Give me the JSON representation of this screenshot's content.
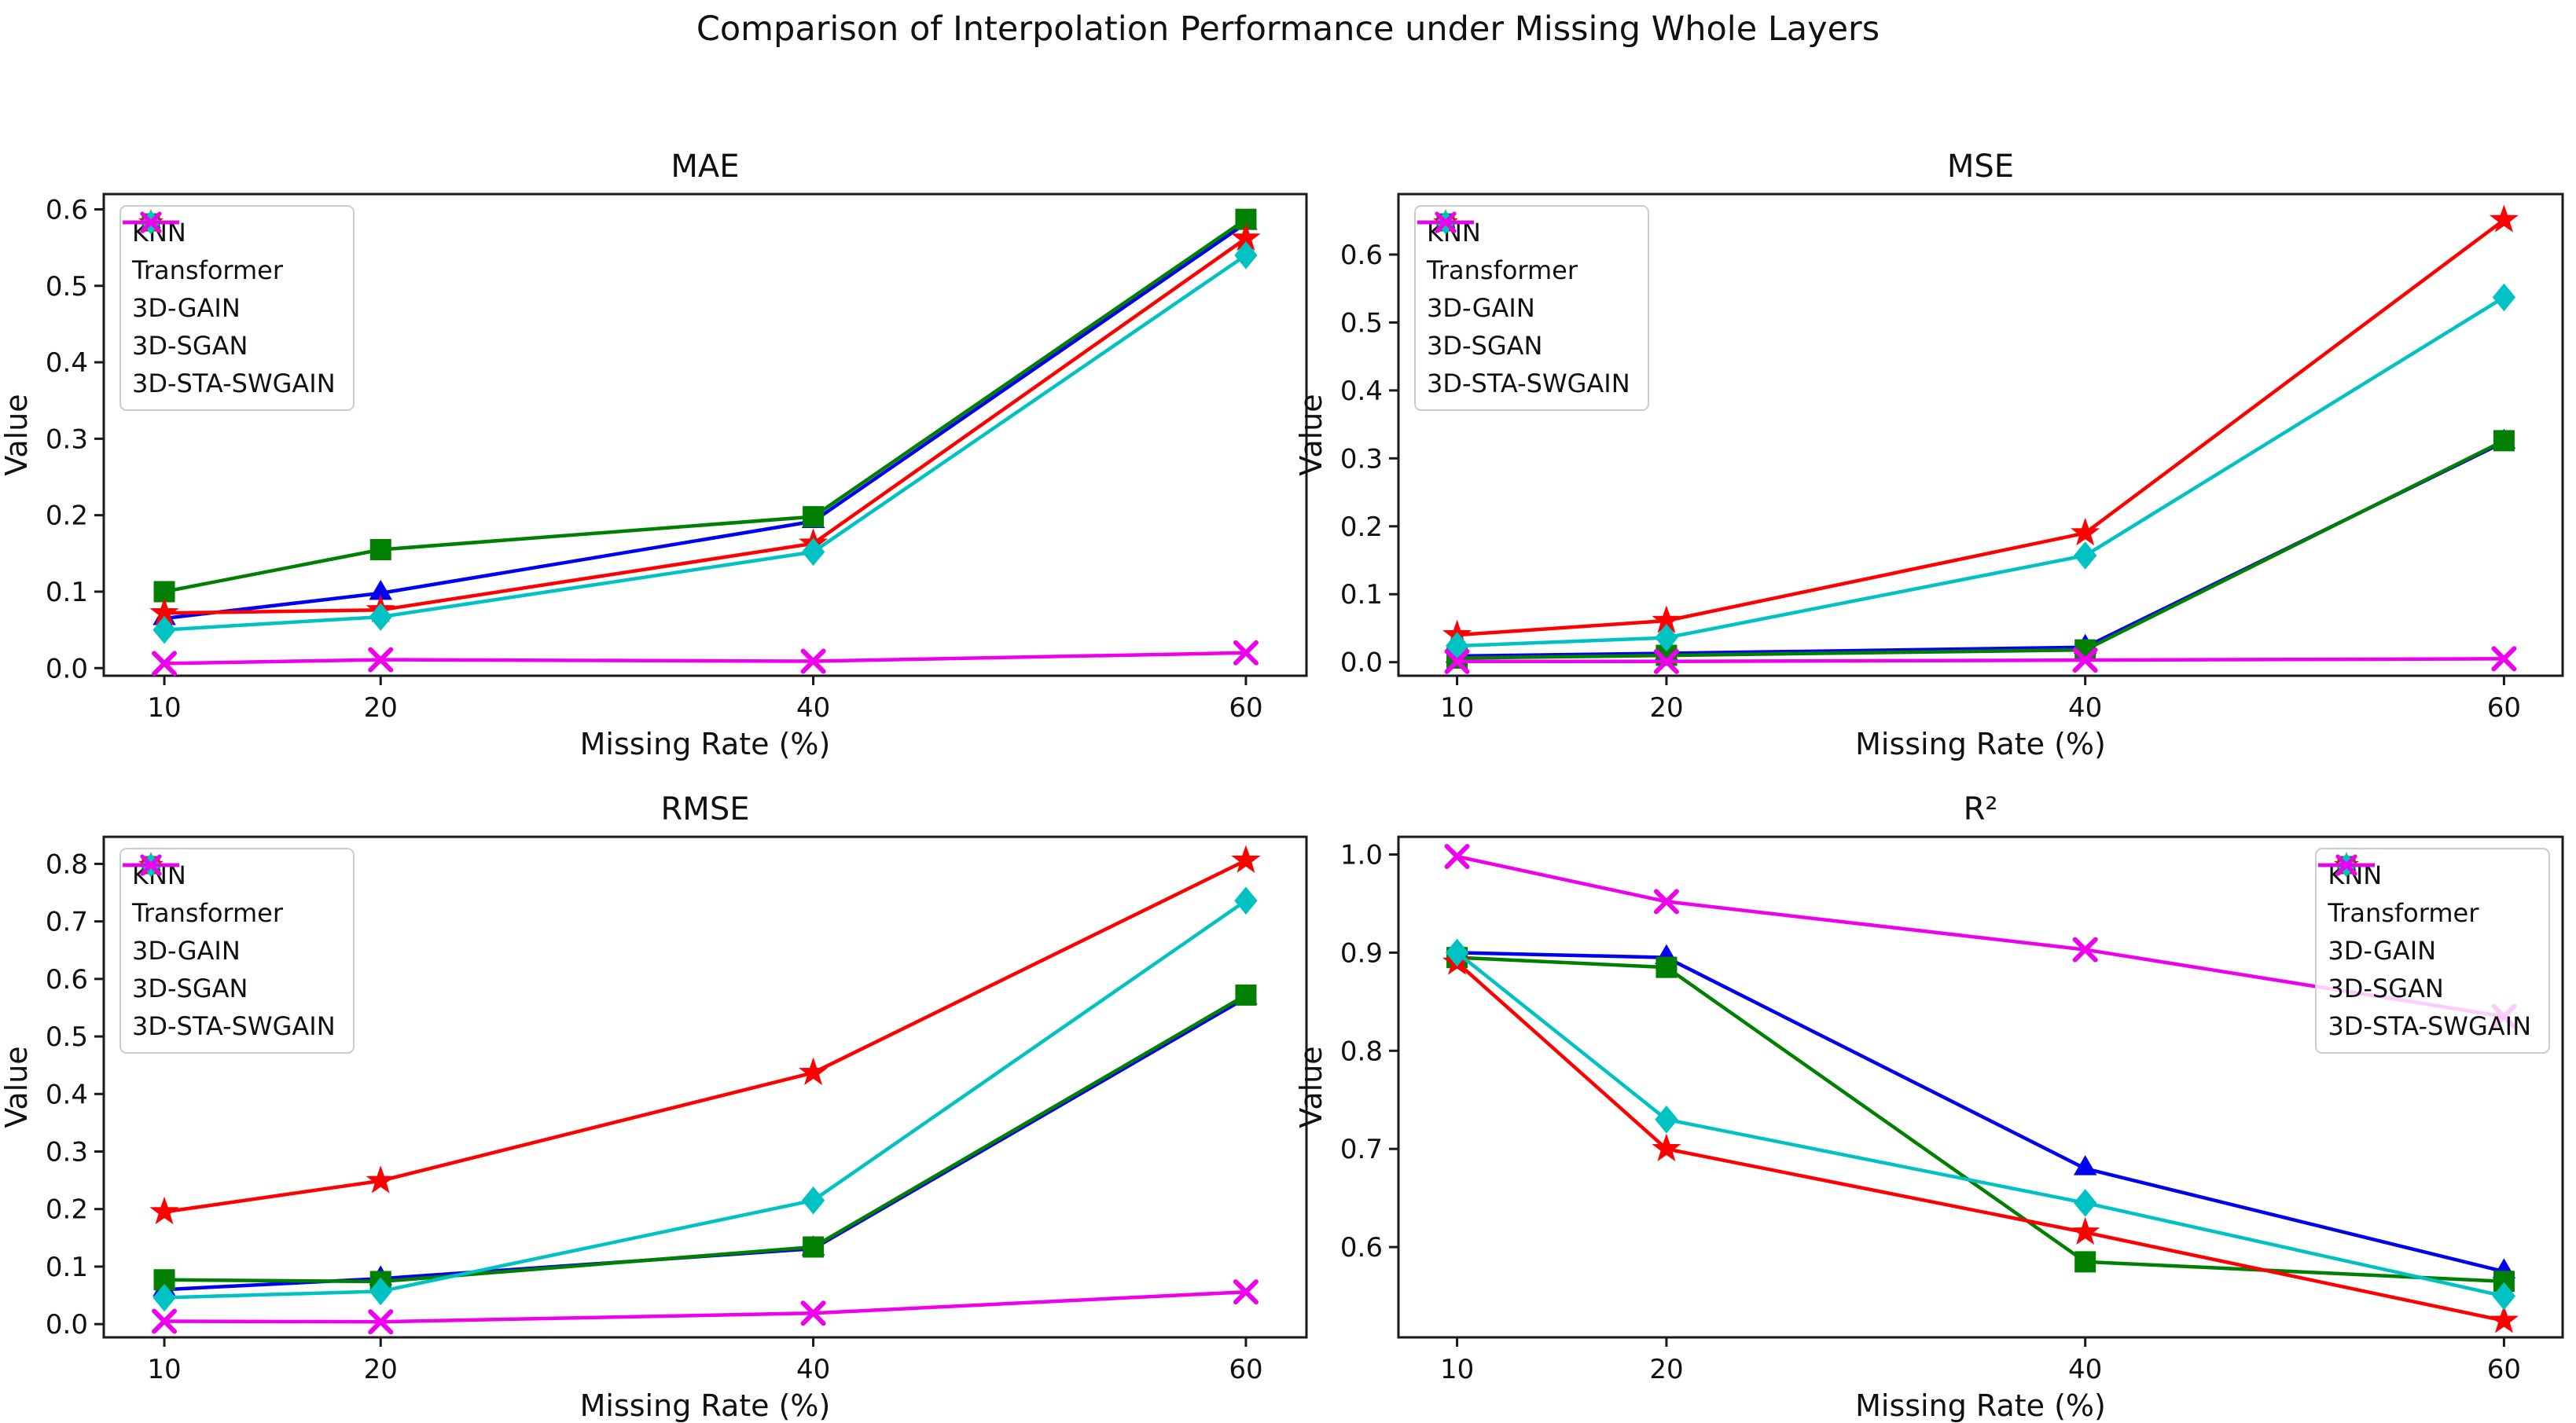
{
  "figure": {
    "suptitle": "Comparison of Interpolation Performance under Missing Whole Layers",
    "background": "#ffffff",
    "text_color": "#111111",
    "spine_color": "#1a1a1a"
  },
  "series_meta": [
    {
      "name": "KNN",
      "color": "#0000f0",
      "marker": "triangle"
    },
    {
      "name": "Transformer",
      "color": "#008000",
      "marker": "square"
    },
    {
      "name": "3D-GAIN",
      "color": "#ff0000",
      "marker": "star"
    },
    {
      "name": "3D-SGAN",
      "color": "#00c2c2",
      "marker": "diamond"
    },
    {
      "name": "3D-STA-SWGAIN",
      "color": "#ee00ee",
      "marker": "x"
    }
  ],
  "chart_data": [
    {
      "id": "mae",
      "type": "line",
      "title": "MAE",
      "xlabel": "Missing Rate (%)",
      "ylabel": "Value",
      "x": [
        10,
        20,
        40,
        60
      ],
      "xticks": [
        10,
        20,
        40,
        60
      ],
      "xlim": [
        7.2,
        62.8
      ],
      "ylim": [
        -0.01,
        0.62
      ],
      "yticks": [
        0.0,
        0.1,
        0.2,
        0.3,
        0.4,
        0.5,
        0.6
      ],
      "grid": false,
      "legend_position": "upper-left",
      "series": [
        {
          "name": "KNN",
          "values": [
            0.065,
            0.098,
            0.192,
            0.582
          ]
        },
        {
          "name": "Transformer",
          "values": [
            0.1,
            0.155,
            0.198,
            0.587
          ]
        },
        {
          "name": "3D-GAIN",
          "values": [
            0.072,
            0.076,
            0.163,
            0.562
          ]
        },
        {
          "name": "3D-SGAN",
          "values": [
            0.05,
            0.067,
            0.152,
            0.54
          ]
        },
        {
          "name": "3D-STA-SWGAIN",
          "values": [
            0.006,
            0.011,
            0.009,
            0.02
          ]
        }
      ]
    },
    {
      "id": "mse",
      "type": "line",
      "title": "MSE",
      "xlabel": "Missing Rate (%)",
      "ylabel": "Value",
      "x": [
        10,
        20,
        40,
        60
      ],
      "xticks": [
        10,
        20,
        40,
        60
      ],
      "xlim": [
        7.2,
        62.8
      ],
      "ylim": [
        -0.02,
        0.689
      ],
      "yticks": [
        0.0,
        0.1,
        0.2,
        0.3,
        0.4,
        0.5,
        0.6
      ],
      "grid": false,
      "legend_position": "upper-left",
      "series": [
        {
          "name": "KNN",
          "values": [
            0.009,
            0.013,
            0.022,
            0.324
          ]
        },
        {
          "name": "Transformer",
          "values": [
            0.006,
            0.01,
            0.018,
            0.326
          ]
        },
        {
          "name": "3D-GAIN",
          "values": [
            0.04,
            0.061,
            0.19,
            0.651
          ]
        },
        {
          "name": "3D-SGAN",
          "values": [
            0.024,
            0.036,
            0.157,
            0.537
          ]
        },
        {
          "name": "3D-STA-SWGAIN",
          "values": [
            0.001,
            0.001,
            0.003,
            0.005
          ]
        }
      ]
    },
    {
      "id": "rmse",
      "type": "line",
      "title": "RMSE",
      "xlabel": "Missing Rate (%)",
      "ylabel": "Value",
      "x": [
        10,
        20,
        40,
        60
      ],
      "xticks": [
        10,
        20,
        40,
        60
      ],
      "xlim": [
        7.2,
        62.8
      ],
      "ylim": [
        -0.023,
        0.847
      ],
      "yticks": [
        0.0,
        0.1,
        0.2,
        0.3,
        0.4,
        0.5,
        0.6,
        0.7,
        0.8
      ],
      "grid": false,
      "legend_position": "upper-left",
      "series": [
        {
          "name": "KNN",
          "values": [
            0.06,
            0.079,
            0.131,
            0.567
          ]
        },
        {
          "name": "Transformer",
          "values": [
            0.077,
            0.074,
            0.134,
            0.572
          ]
        },
        {
          "name": "3D-GAIN",
          "values": [
            0.195,
            0.249,
            0.437,
            0.806
          ]
        },
        {
          "name": "3D-SGAN",
          "values": [
            0.046,
            0.057,
            0.215,
            0.736
          ]
        },
        {
          "name": "3D-STA-SWGAIN",
          "values": [
            0.005,
            0.004,
            0.019,
            0.056
          ]
        }
      ]
    },
    {
      "id": "r2",
      "type": "line",
      "title": "R²",
      "xlabel": "Missing Rate (%)",
      "ylabel": "Value",
      "x": [
        10,
        20,
        40,
        60
      ],
      "xticks": [
        10,
        20,
        40,
        60
      ],
      "xlim": [
        7.2,
        62.8
      ],
      "ylim": [
        0.508,
        1.018
      ],
      "yticks": [
        0.6,
        0.7,
        0.8,
        0.9,
        1.0
      ],
      "grid": false,
      "legend_position": "upper-right",
      "series": [
        {
          "name": "KNN",
          "values": [
            0.9,
            0.895,
            0.68,
            0.575
          ]
        },
        {
          "name": "Transformer",
          "values": [
            0.895,
            0.885,
            0.585,
            0.565
          ]
        },
        {
          "name": "3D-GAIN",
          "values": [
            0.89,
            0.7,
            0.615,
            0.525
          ]
        },
        {
          "name": "3D-SGAN",
          "values": [
            0.9,
            0.73,
            0.645,
            0.55
          ]
        },
        {
          "name": "3D-STA-SWGAIN",
          "values": [
            0.998,
            0.952,
            0.903,
            0.835
          ]
        }
      ]
    }
  ]
}
